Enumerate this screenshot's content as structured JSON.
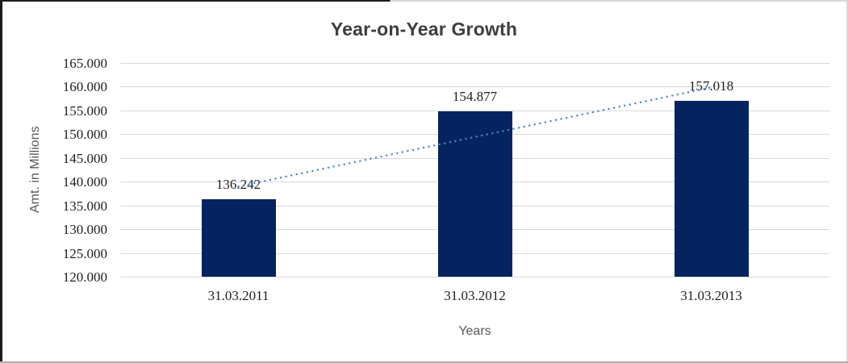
{
  "chart_data": {
    "type": "bar",
    "title": "Year-on-Year Growth",
    "categories": [
      "31.03.2011",
      "31.03.2012",
      "31.03.2013"
    ],
    "values": [
      136.242,
      154.877,
      157.018
    ],
    "data_labels": [
      "136.242",
      "154.877",
      "157.018"
    ],
    "xlabel": "Years",
    "ylabel": "Amt. in Millions",
    "ylim": [
      120,
      165
    ],
    "ytick_step": 5,
    "ytick_labels": [
      "165.000",
      "160.000",
      "155.000",
      "150.000",
      "145.000",
      "140.000",
      "135.000",
      "130.000",
      "125.000",
      "120.000"
    ],
    "grid": true,
    "legend": false,
    "trendline": {
      "type": "linear",
      "style": "dotted",
      "color": "#4e86c6"
    },
    "colors": {
      "bar": "#04235f",
      "gridline": "#d9d9d9",
      "title_text": "#3d3d3d",
      "tick_text": "#1f1f1f",
      "axis_title_text": "#595959",
      "background": "#ffffff"
    }
  }
}
